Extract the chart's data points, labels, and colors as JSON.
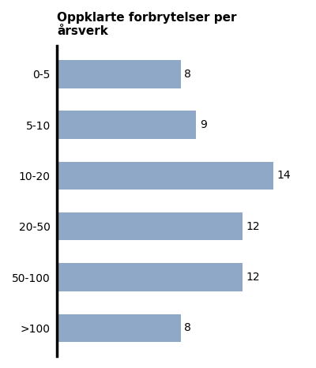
{
  "categories": [
    "0-5",
    "5-10",
    "10-20",
    "20-50",
    "50-100",
    ">100"
  ],
  "values": [
    8,
    9,
    14,
    12,
    12,
    8
  ],
  "bar_color": "#8fa8c8",
  "title_line1": "Oppklarte forbrytelser per",
  "title_line2": "årsverk",
  "title_fontsize": 11,
  "label_fontsize": 10,
  "value_fontsize": 10,
  "bar_height": 0.55,
  "xlim": [
    0,
    16
  ],
  "background_color": "#ffffff",
  "spine_color": "#000000"
}
